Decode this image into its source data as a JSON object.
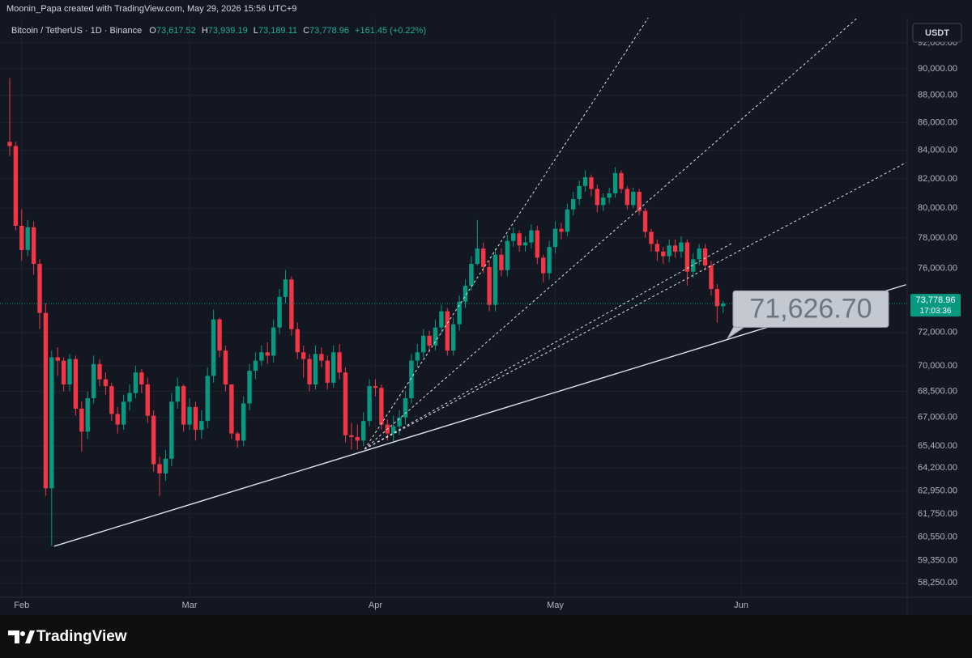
{
  "credit": "Moonin_Papa created with TradingView.com, May 29, 2026 15:56 UTC+9",
  "brand": "TradingView",
  "currency_button": "USDT",
  "chart_data": {
    "type": "candlestick",
    "title": "Bitcoin / TetherUS · 1D · Binance",
    "ohlc_header": [
      {
        "key": "O",
        "label": "73,617.52"
      },
      {
        "key": "H",
        "label": "73,939.19"
      },
      {
        "key": "L",
        "label": "73,189.11"
      },
      {
        "key": "C",
        "label": "73,778.96"
      }
    ],
    "change_label": "+161.45 (+0.22%)",
    "up_color": "#089981",
    "down_color": "#f23645",
    "log_scale": true,
    "grid": true,
    "xlim": [
      -1.62,
      149.7
    ],
    "ylim": [
      57540,
      93970
    ],
    "xticks": [
      {
        "value": 2,
        "label": "Feb"
      },
      {
        "value": 30,
        "label": "Mar"
      },
      {
        "value": 61,
        "label": "Apr"
      },
      {
        "value": 91,
        "label": "May"
      },
      {
        "value": 122,
        "label": "Jun"
      }
    ],
    "yticks": [
      {
        "value": 58250,
        "label": "58,250.00"
      },
      {
        "value": 59350,
        "label": "59,350.00"
      },
      {
        "value": 60550,
        "label": "60,550.00"
      },
      {
        "value": 61750,
        "label": "61,750.00"
      },
      {
        "value": 62950,
        "label": "62,950.00"
      },
      {
        "value": 64200,
        "label": "64,200.00"
      },
      {
        "value": 65400,
        "label": "65,400.00"
      },
      {
        "value": 67000,
        "label": "67,000.00"
      },
      {
        "value": 68500,
        "label": "68,500.00"
      },
      {
        "value": 70000,
        "label": "70,000.00"
      },
      {
        "value": 72000,
        "label": "72,000.00"
      },
      {
        "value": 76000,
        "label": "76,000.00"
      },
      {
        "value": 78000,
        "label": "78,000.00"
      },
      {
        "value": 80000,
        "label": "80,000.00"
      },
      {
        "value": 82000,
        "label": "82,000.00"
      },
      {
        "value": 84000,
        "label": "84,000.00"
      },
      {
        "value": 86000,
        "label": "86,000.00"
      },
      {
        "value": 88000,
        "label": "88,000.00"
      },
      {
        "value": 90000,
        "label": "90,000.00"
      },
      {
        "value": 92000,
        "label": "92,000.00"
      }
    ],
    "open": [
      84600,
      84300,
      78800,
      77200,
      78700,
      76300,
      73200,
      63100,
      70500,
      70300,
      68900,
      70400,
      67500,
      66200,
      68100,
      70100,
      69200,
      68800,
      67200,
      66600,
      67900,
      68400,
      69600,
      68900,
      67100,
      64400,
      63900,
      64700,
      67900,
      68800,
      66600,
      67600,
      66300,
      66800,
      69400,
      72800,
      70900,
      68900,
      66100,
      65700,
      67800,
      69700,
      70300,
      70800,
      70600,
      72300,
      74200,
      75300,
      72200,
      70800,
      70400,
      68900,
      70700,
      70300,
      69000,
      70800,
      69600,
      66000,
      65900,
      65700,
      66800,
      68800,
      68700,
      66600,
      66100,
      66500,
      67000,
      68100,
      70300,
      70800,
      71800,
      71200,
      72300,
      73300,
      70900,
      72500,
      73900,
      74900,
      76300,
      77300,
      76100,
      73700,
      76900,
      75900,
      77800,
      78300,
      77500,
      77700,
      78500,
      76700,
      75700,
      77400,
      78600,
      78400,
      79900,
      80600,
      81500,
      82100,
      81300,
      80200,
      80700,
      81000,
      82400,
      81300,
      80200,
      81100,
      79800,
      78400,
      77600,
      77100,
      76800,
      77500,
      77100,
      77700,
      75800,
      76600,
      77300,
      76200,
      74700,
      73617.52
    ],
    "high": [
      89300,
      84600,
      79900,
      79200,
      79100,
      76600,
      73800,
      70900,
      71100,
      70500,
      70700,
      70600,
      67900,
      68500,
      70600,
      70400,
      69600,
      69000,
      67600,
      68300,
      68900,
      70000,
      69800,
      69300,
      67400,
      64800,
      65200,
      68400,
      69300,
      68900,
      68100,
      67900,
      67400,
      69900,
      73400,
      72900,
      71200,
      68900,
      66200,
      68200,
      70100,
      70800,
      71200,
      71400,
      72800,
      74700,
      75900,
      75500,
      72600,
      71200,
      70700,
      71200,
      71100,
      70600,
      71200,
      71300,
      69900,
      66700,
      66600,
      67300,
      69200,
      69200,
      68900,
      66900,
      67100,
      67400,
      68500,
      70700,
      71300,
      72200,
      72100,
      72800,
      73700,
      73500,
      72900,
      74300,
      75300,
      76800,
      79200,
      77700,
      76500,
      77300,
      77300,
      78200,
      78700,
      78500,
      78100,
      78900,
      78800,
      76900,
      77800,
      79100,
      79000,
      80300,
      81100,
      81900,
      82600,
      82300,
      81600,
      81000,
      81400,
      82800,
      82600,
      81500,
      81400,
      81300,
      80000,
      78600,
      77900,
      77400,
      77900,
      77900,
      78100,
      77900,
      77000,
      77600,
      77600,
      76500,
      75000,
      73939.19
    ],
    "low": [
      83600,
      78500,
      76500,
      76800,
      75600,
      72200,
      62700,
      60100,
      69400,
      68500,
      68500,
      67100,
      65100,
      65800,
      67800,
      68800,
      68300,
      66800,
      66100,
      66300,
      67400,
      68100,
      68400,
      66700,
      64000,
      62700,
      63500,
      64300,
      67500,
      66200,
      66300,
      65700,
      65800,
      66400,
      69000,
      70500,
      68500,
      65800,
      65300,
      65400,
      67400,
      69200,
      70000,
      70100,
      70200,
      71900,
      73800,
      71800,
      70400,
      69300,
      68500,
      68600,
      69900,
      68600,
      68700,
      69200,
      65600,
      65200,
      65200,
      65400,
      66500,
      68200,
      66300,
      65700,
      65600,
      66000,
      66600,
      67800,
      69900,
      70500,
      70800,
      70900,
      71900,
      70600,
      70600,
      72100,
      73500,
      74600,
      76200,
      75700,
      73300,
      73300,
      75500,
      75500,
      77400,
      77100,
      77100,
      77300,
      76300,
      75100,
      75300,
      77000,
      77900,
      78100,
      79500,
      80200,
      81100,
      80800,
      79700,
      79800,
      80300,
      80700,
      81000,
      79900,
      80000,
      79500,
      78000,
      77100,
      76500,
      76300,
      76400,
      76700,
      76700,
      74900,
      75400,
      76200,
      75900,
      74300,
      72600,
      73189.11
    ],
    "close": [
      84300,
      78800,
      77200,
      78700,
      76300,
      73200,
      63100,
      70500,
      70300,
      68900,
      70400,
      67500,
      66200,
      68100,
      70100,
      69200,
      68800,
      67200,
      66600,
      67900,
      68400,
      69600,
      68900,
      67100,
      64400,
      63900,
      64700,
      67900,
      68800,
      66600,
      67600,
      66300,
      66800,
      69400,
      72800,
      70900,
      68900,
      66100,
      65700,
      67800,
      69700,
      70300,
      70800,
      70600,
      72300,
      74200,
      75300,
      72200,
      70800,
      70400,
      68900,
      70700,
      70300,
      69000,
      70800,
      69600,
      66000,
      65900,
      65700,
      66800,
      68800,
      68700,
      66600,
      66100,
      66500,
      67000,
      68100,
      70300,
      70800,
      71800,
      71200,
      72300,
      73300,
      70900,
      72500,
      73900,
      74900,
      76300,
      77300,
      76100,
      73700,
      76900,
      75900,
      77800,
      78300,
      77500,
      77700,
      78500,
      76700,
      75700,
      77400,
      78600,
      78400,
      79900,
      80600,
      81500,
      82100,
      81300,
      80200,
      80700,
      81000,
      82400,
      81300,
      80200,
      81100,
      79800,
      78400,
      77600,
      77100,
      76800,
      77500,
      77100,
      77700,
      75800,
      76600,
      77300,
      76200,
      74700,
      73617.52,
      73778.96
    ],
    "last_price_label": "73,778.96",
    "countdown": "17:03:36",
    "trend_lines": [
      {
        "style": "solid",
        "x": [
          7.4,
          149.5
        ],
        "y": [
          60080,
          74970
        ]
      },
      {
        "style": "dashed",
        "x": [
          59.2,
          106.5
        ],
        "y": [
          65230,
          93970
        ]
      },
      {
        "style": "dashed",
        "x": [
          59.2,
          141.4
        ],
        "y": [
          65230,
          93970
        ]
      },
      {
        "style": "dashed",
        "x": [
          59.2,
          149.5
        ],
        "y": [
          65230,
          83130
        ]
      },
      {
        "style": "dashed",
        "x": [
          59.2,
          120.7
        ],
        "y": [
          65230,
          77700
        ]
      }
    ],
    "annotation": {
      "label": "71,626.70",
      "x": 119.7,
      "value": 71626.7
    }
  }
}
